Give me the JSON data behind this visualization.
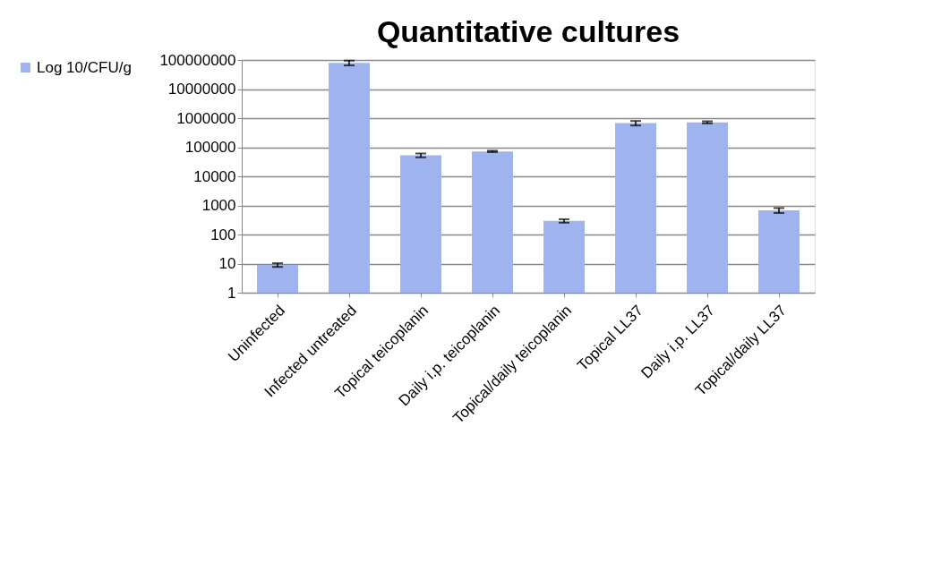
{
  "chart_data": {
    "type": "bar",
    "title": "Quantitative cultures",
    "categories": [
      "Uninfected",
      "Infected untreated",
      "Topical teicoplanin",
      "Daily i.p. teicoplanin",
      "Topical/daily teicoplanin",
      "Topical LL37",
      "Daily i.p. LL37",
      "Topical/daily LL37"
    ],
    "series": [
      {
        "name": "Log 10/CFU/g",
        "color": "#9fb4ee",
        "values": [
          9,
          80000000,
          53000,
          72000,
          295,
          680000,
          720000,
          680
        ],
        "errors": [
          1.3,
          15000000,
          8000,
          4000,
          40,
          120000,
          60000,
          130
        ]
      }
    ],
    "log": true,
    "ylim": [
      1,
      100000000
    ],
    "yticks": [
      1,
      10,
      100,
      1000,
      10000,
      100000,
      1000000,
      10000000,
      100000000
    ],
    "grid": "y",
    "legend": "left"
  }
}
